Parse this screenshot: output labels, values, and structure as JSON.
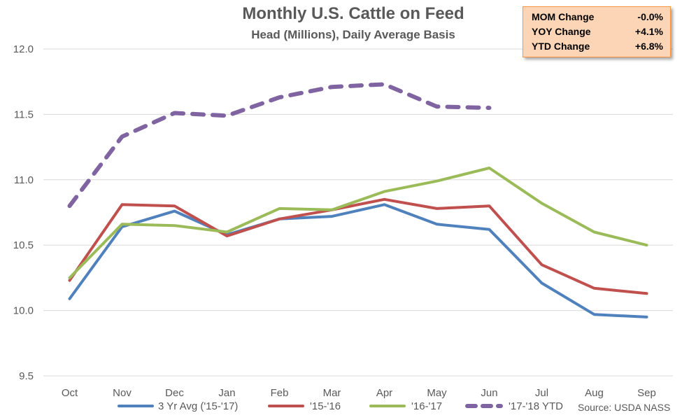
{
  "chart_data": {
    "type": "line",
    "title": "Monthly U.S. Cattle on Feed",
    "subtitle": "Head (Millions), Daily Average Basis",
    "categories": [
      "Oct",
      "Nov",
      "Dec",
      "Jan",
      "Feb",
      "Mar",
      "Apr",
      "May",
      "Jun",
      "Jul",
      "Aug",
      "Sep"
    ],
    "ylim": [
      9.5,
      12.0
    ],
    "yticks": [
      "9.5",
      "10.0",
      "10.5",
      "11.0",
      "11.5",
      "12.0"
    ],
    "grid": true,
    "legend_position": "bottom",
    "series": [
      {
        "name": "3 Yr Avg ('15-'17)",
        "color": "#4f81bd",
        "dashed": false,
        "values": [
          10.09,
          10.64,
          10.76,
          10.58,
          10.7,
          10.72,
          10.81,
          10.66,
          10.62,
          10.21,
          9.97,
          9.95
        ]
      },
      {
        "name": "'15-'16",
        "color": "#c0504d",
        "dashed": false,
        "values": [
          10.23,
          10.81,
          10.8,
          10.57,
          10.7,
          10.77,
          10.85,
          10.78,
          10.8,
          10.35,
          10.17,
          10.13
        ]
      },
      {
        "name": "'16-'17",
        "color": "#9bbb59",
        "dashed": false,
        "values": [
          10.25,
          10.66,
          10.65,
          10.6,
          10.78,
          10.77,
          10.91,
          10.99,
          11.09,
          10.82,
          10.6,
          10.5
        ]
      },
      {
        "name": "'17-'18 YTD",
        "color": "#8064a2",
        "dashed": true,
        "values": [
          10.8,
          11.33,
          11.51,
          11.49,
          11.63,
          11.71,
          11.73,
          11.56,
          11.55,
          null,
          null,
          null
        ]
      }
    ]
  },
  "stats": [
    {
      "label": "MOM Change",
      "value": "-0.0%"
    },
    {
      "label": "YOY Change",
      "value": "+4.1%"
    },
    {
      "label": "YTD Change",
      "value": "+6.8%"
    }
  ],
  "source": "Source: USDA NASS"
}
